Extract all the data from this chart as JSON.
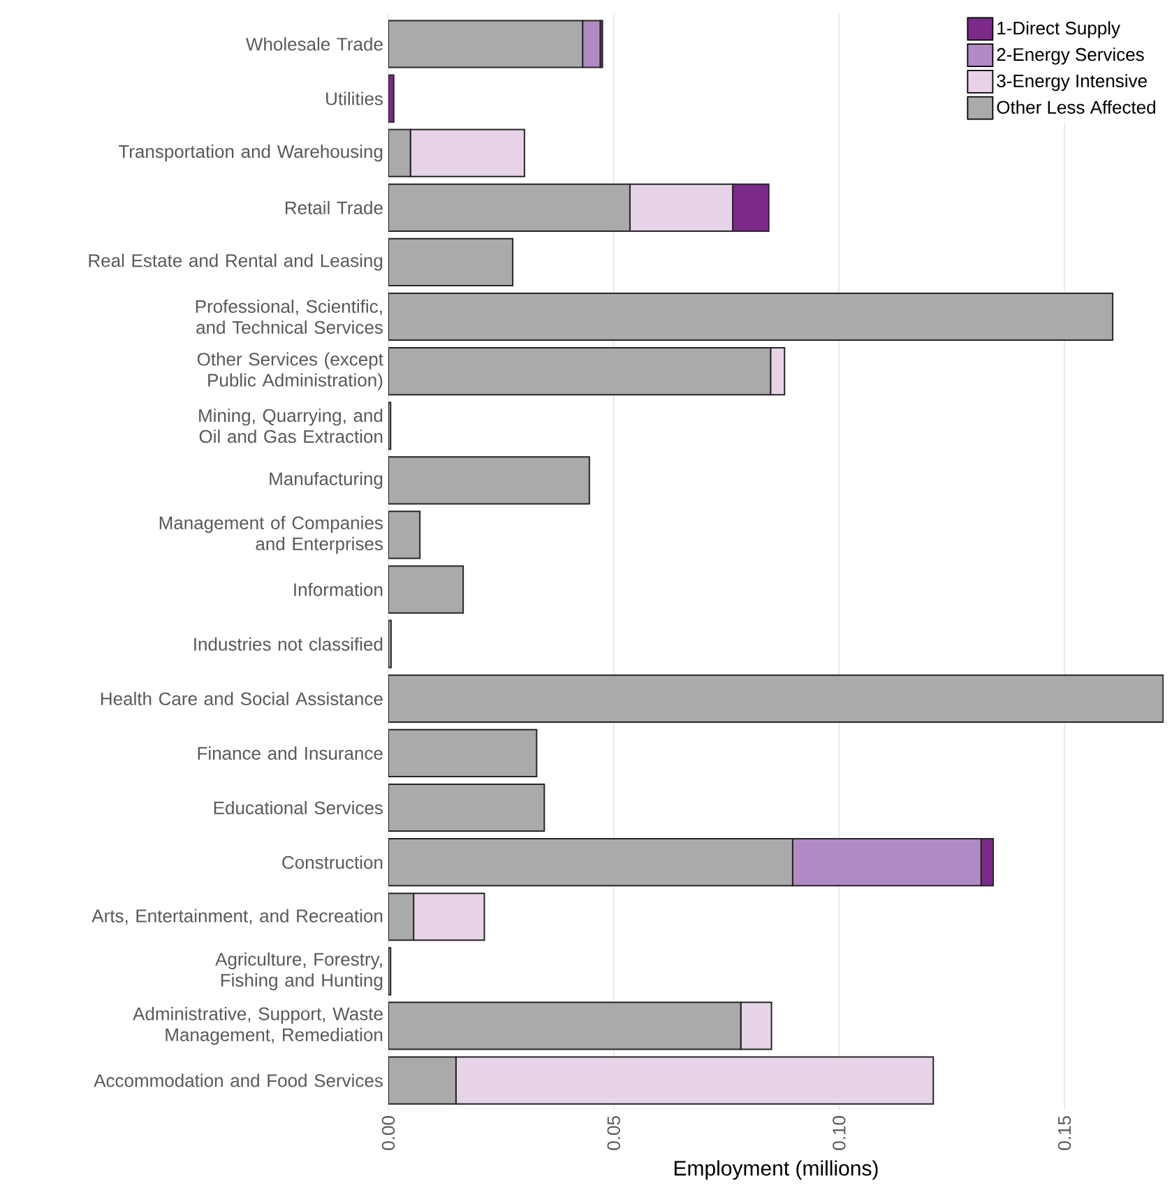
{
  "chart_data": {
    "type": "bar",
    "orientation": "horizontal",
    "stacked": true,
    "xlabel": "Employment (millions)",
    "categories": [
      "Wholesale Trade",
      "Utilities",
      "Transportation and Warehousing",
      "Retail Trade",
      "Real Estate and Rental and Leasing",
      "Professional, Scientific, and Technical Services",
      "Other Services (except Public Administration)",
      "Mining, Quarrying, and Oil and Gas Extraction",
      "Manufacturing",
      "Management of Companies and Enterprises",
      "Information",
      "Industries not classified",
      "Health Care and Social Assistance",
      "Finance and Insurance",
      "Educational Services",
      "Construction",
      "Arts, Entertainment, and Recreation",
      "Agriculture, Forestry, Fishing and Hunting",
      "Administrative, Support, Waste Management, Remediation",
      "Accommodation and Food Services"
    ],
    "series": [
      {
        "name": "Other Less Affected",
        "color": "#aaaaaa",
        "values": [
          0.0431,
          null,
          0.0049,
          0.0536,
          0.0276,
          0.1607,
          0.0848,
          0.0005,
          0.0446,
          0.007,
          0.0166,
          0.0006,
          0.1719,
          0.0329,
          0.0346,
          0.0897,
          0.0056,
          0.0005,
          0.0782,
          0.015
        ]
      },
      {
        "name": "3-Energy Intensive",
        "color": "#e6d3e8",
        "values": [
          null,
          null,
          0.0253,
          0.0228,
          null,
          null,
          0.0031,
          null,
          null,
          null,
          null,
          null,
          null,
          null,
          null,
          null,
          0.0157,
          null,
          0.0068,
          0.1059
        ]
      },
      {
        "name": "2-Energy Services",
        "color": "#b08ac2",
        "values": [
          0.0039,
          null,
          null,
          null,
          null,
          null,
          null,
          null,
          null,
          null,
          null,
          null,
          null,
          null,
          null,
          0.0418,
          null,
          null,
          null,
          null
        ]
      },
      {
        "name": "1-Direct Supply",
        "color": "#7b2a8a",
        "values": [
          0.0005,
          0.0012,
          null,
          0.008,
          null,
          null,
          null,
          null,
          null,
          null,
          null,
          null,
          null,
          null,
          null,
          0.0027,
          null,
          null,
          null,
          null
        ]
      }
    ],
    "xlim": [
      0,
      0.172
    ],
    "xticks": [
      {
        "value": 0,
        "label": "0.00"
      },
      {
        "value": 0.05,
        "label": "0.05"
      },
      {
        "value": 0.1,
        "label": "0.10"
      },
      {
        "value": 0.15,
        "label": "0.15"
      }
    ],
    "grid": "x",
    "legend": "top right"
  }
}
